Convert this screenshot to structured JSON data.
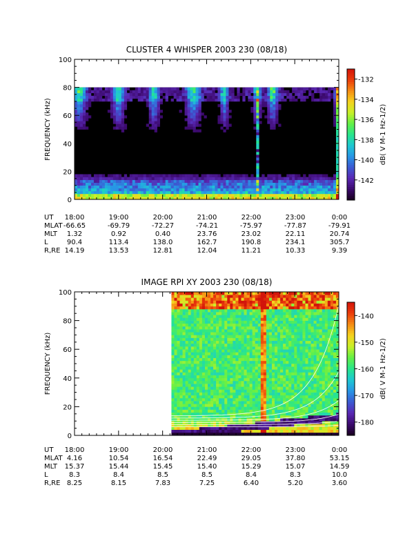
{
  "colors": {
    "colormap": [
      "#18001e",
      "#3c0a6e",
      "#5a28b4",
      "#3c5ad2",
      "#2896e6",
      "#1ec8d2",
      "#28e68c",
      "#64f046",
      "#c8f028",
      "#f5d21e",
      "#f58c14",
      "#eb3c0a",
      "#d2140a"
    ],
    "panel1_background": "#000000",
    "contour_lines": "#ffffff"
  },
  "chart_data": [
    {
      "type": "heatmap",
      "title": "CLUSTER 4 WHISPER 2003 230 (08/18)",
      "ylabel": "FREQUENCY (kHz)",
      "ylim": [
        0,
        100
      ],
      "yticks": [
        "0",
        "20",
        "40",
        "60",
        "80",
        "100"
      ],
      "xticks": [
        "18:00",
        "19:00",
        "20:00",
        "21:00",
        "22:00",
        "23:00",
        "0:00"
      ],
      "xlim_hours": [
        18,
        24
      ],
      "data_ylim": [
        0,
        80
      ],
      "colorbar": {
        "label": "dB( V M-1 Hz-1/2)",
        "range": [
          -144,
          -131
        ],
        "ticks": [
          "-132",
          "-134",
          "-136",
          "-138",
          "-140",
          "-142"
        ]
      },
      "ephemeris": {
        "rows": [
          {
            "label": "UT",
            "values": [
              "18:00",
              "19:00",
              "20:00",
              "21:00",
              "22:00",
              "23:00",
              "0:00"
            ]
          },
          {
            "label": "MLAT",
            "values": [
              "-66.65",
              "-69.79",
              "-72.27",
              "-74.21",
              "-75.97",
              "-77.87",
              "-79.91"
            ]
          },
          {
            "label": "MLT",
            "values": [
              "1.32",
              "0.92",
              "0.40",
              "23.76",
              "23.02",
              "22.11",
              "20.74"
            ]
          },
          {
            "label": "L",
            "values": [
              "90.4",
              "113.4",
              "138.0",
              "162.7",
              "190.8",
              "234.1",
              "305.7"
            ]
          },
          {
            "label": "R,RE",
            "values": [
              "14.19",
              "13.53",
              "12.81",
              "12.04",
              "11.21",
              "10.33",
              "9.39"
            ]
          }
        ]
      }
    },
    {
      "type": "heatmap",
      "title": "IMAGE RPI XY 2003 230 (08/18)",
      "ylabel": "FREQUENCY (kHz)",
      "ylim": [
        0,
        100
      ],
      "yticks": [
        "0",
        "20",
        "40",
        "60",
        "80",
        "100"
      ],
      "xticks": [
        "18:00",
        "19:00",
        "20:00",
        "21:00",
        "22:00",
        "23:00",
        "0:00"
      ],
      "xlim_hours": [
        18,
        24
      ],
      "data_start_hour": 20.2,
      "colorbar": {
        "label": "dB( V M-1 Hz-1/2)",
        "range": [
          -185,
          -135
        ],
        "ticks": [
          "-140",
          "-150",
          "-160",
          "-170",
          "-180"
        ]
      },
      "ephemeris": {
        "rows": [
          {
            "label": "UT",
            "values": [
              "18:00",
              "19:00",
              "20:00",
              "21:00",
              "22:00",
              "23:00",
              "0:00"
            ]
          },
          {
            "label": "MLAT",
            "values": [
              "4.16",
              "10.54",
              "16.54",
              "22.49",
              "29.05",
              "37.80",
              "53.15"
            ]
          },
          {
            "label": "MLT",
            "values": [
              "15.37",
              "15.44",
              "15.45",
              "15.40",
              "15.29",
              "15.07",
              "14.59"
            ]
          },
          {
            "label": "L",
            "values": [
              "8.3",
              "8.4",
              "8.5",
              "8.5",
              "8.4",
              "8.3",
              "10.0"
            ]
          },
          {
            "label": "R,RE",
            "values": [
              "8.25",
              "8.15",
              "7.83",
              "7.25",
              "6.40",
              "5.20",
              "3.60"
            ]
          }
        ]
      }
    }
  ]
}
